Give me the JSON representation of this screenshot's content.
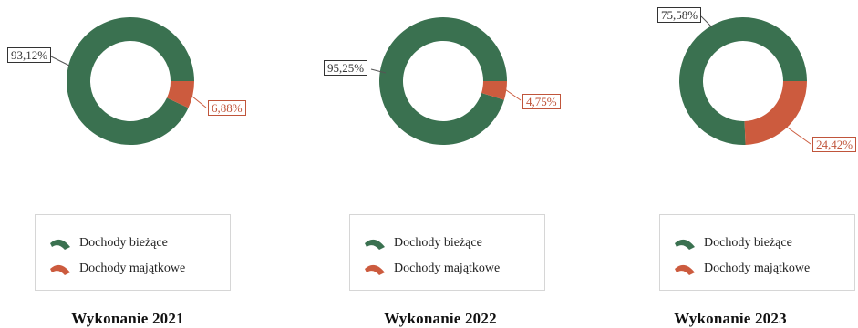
{
  "colors": {
    "biezace": "#3a7150",
    "majatkowe": "#cc5b3e"
  },
  "legend": {
    "item_1": "Dochody bieżące",
    "item_2": "Dochody majątkowe"
  },
  "chart_data": [
    {
      "type": "pie",
      "title": "Wykonanie 2021",
      "series": [
        {
          "name": "Dochody bieżące",
          "value": 93.12,
          "label": "93,12%"
        },
        {
          "name": "Dochody majątkowe",
          "value": 6.88,
          "label": "6,88%"
        }
      ]
    },
    {
      "type": "pie",
      "title": "Wykonanie 2022",
      "series": [
        {
          "name": "Dochody bieżące",
          "value": 95.25,
          "label": "95,25%"
        },
        {
          "name": "Dochody majątkowe",
          "value": 4.75,
          "label": "4,75%"
        }
      ]
    },
    {
      "type": "pie",
      "title": "Wykonanie 2023",
      "series": [
        {
          "name": "Dochody bieżące",
          "value": 75.58,
          "label": "75,58%"
        },
        {
          "name": "Dochody majątkowe",
          "value": 24.42,
          "label": "24,42%"
        }
      ]
    }
  ]
}
